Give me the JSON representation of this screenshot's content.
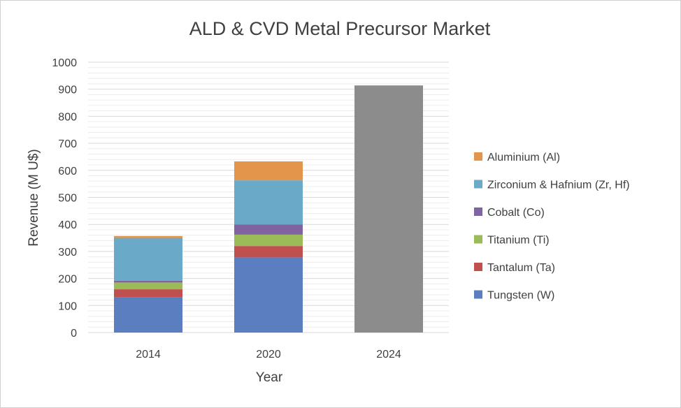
{
  "chart_data": {
    "type": "bar",
    "stacked": true,
    "title": "ALD & CVD Metal Precursor Market",
    "xlabel": "Year",
    "ylabel": "Revenue (M U$)",
    "ylim": [
      0,
      1000
    ],
    "yticks": [
      0,
      100,
      200,
      300,
      400,
      500,
      600,
      700,
      800,
      900,
      1000
    ],
    "grid": "horizontal minor and major lines",
    "legend_position": "right",
    "categories": [
      "2014",
      "2020",
      "2024"
    ],
    "series": [
      {
        "name": "Tungsten (W)",
        "color": "#5b7ec0",
        "values": [
          130,
          278,
          null
        ]
      },
      {
        "name": "Tantalum (Ta)",
        "color": "#c0504d",
        "values": [
          30,
          42,
          null
        ]
      },
      {
        "name": "Titanium (Ti)",
        "color": "#9bbb59",
        "values": [
          25,
          42,
          null
        ]
      },
      {
        "name": "Cobalt (Co)",
        "color": "#8064a2",
        "values": [
          7,
          38,
          null
        ]
      },
      {
        "name": "Zirconium & Hafnium (Zr, Hf)",
        "color": "#6aaac8",
        "values": [
          158,
          163,
          null
        ]
      },
      {
        "name": "Aluminium (Al)",
        "color": "#e2954b",
        "values": [
          7,
          70,
          null
        ]
      },
      {
        "name": "",
        "color": "#8c8c8c",
        "values": [
          null,
          null,
          914
        ]
      }
    ],
    "legend_order": [
      "Aluminium (Al)",
      "Zirconium & Hafnium (Zr, Hf)",
      "Cobalt (Co)",
      "Titanium (Ti)",
      "Tantalum (Ta)",
      "Tungsten (W)"
    ]
  }
}
